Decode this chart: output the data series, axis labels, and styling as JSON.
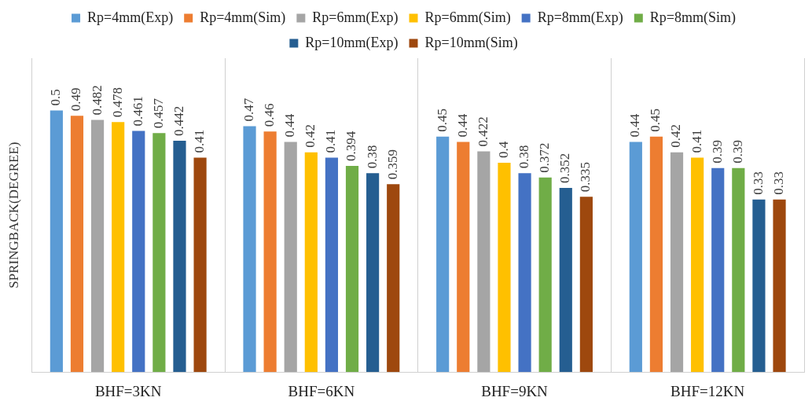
{
  "chart_data": {
    "type": "bar",
    "ylabel": "SPRINGBACK(DEGREE)",
    "categories": [
      "BHF=3KN",
      "BHF=6KN",
      "BHF=9KN",
      "BHF=12KN"
    ],
    "series": [
      {
        "name": "Rp=4mm(Exp)",
        "color": "#5b9bd5",
        "values": [
          0.5,
          0.47,
          0.45,
          0.44
        ]
      },
      {
        "name": "Rp=4mm(Sim)",
        "color": "#ed7d31",
        "values": [
          0.49,
          0.46,
          0.44,
          0.45
        ]
      },
      {
        "name": "Rp=6mm(Exp)",
        "color": "#a5a5a5",
        "values": [
          0.482,
          0.44,
          0.422,
          0.42
        ]
      },
      {
        "name": "Rp=6mm(Sim)",
        "color": "#ffc000",
        "values": [
          0.478,
          0.42,
          0.4,
          0.41
        ]
      },
      {
        "name": "Rp=8mm(Exp)",
        "color": "#4472c4",
        "values": [
          0.461,
          0.41,
          0.38,
          0.39
        ]
      },
      {
        "name": "Rp=8mm(Sim)",
        "color": "#70ad47",
        "values": [
          0.457,
          0.394,
          0.372,
          0.39
        ]
      },
      {
        "name": "Rp=10mm(Exp)",
        "color": "#255e91",
        "values": [
          0.442,
          0.38,
          0.352,
          0.33
        ]
      },
      {
        "name": "Rp=10mm(Sim)",
        "color": "#9e480e",
        "values": [
          0.41,
          0.359,
          0.335,
          0.33
        ]
      }
    ],
    "data_labels": true,
    "grid": "x",
    "legend": "top"
  }
}
